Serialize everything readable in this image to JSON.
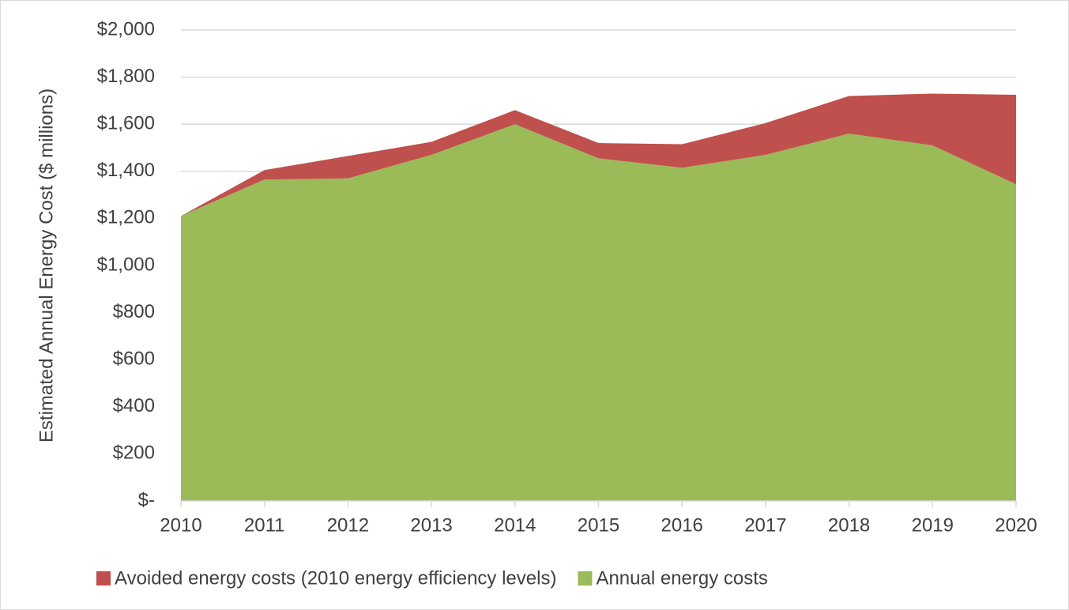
{
  "chart_data": {
    "type": "stacked_area",
    "y_label": "Estimated Annual Energy Cost ($ millions)",
    "x": [
      2010,
      2011,
      2012,
      2013,
      2014,
      2015,
      2016,
      2017,
      2018,
      2019,
      2020
    ],
    "xlim": [
      2010,
      2020
    ],
    "xticks": [
      2010,
      2011,
      2012,
      2013,
      2014,
      2015,
      2016,
      2017,
      2018,
      2019,
      2020
    ],
    "ylim": [
      0,
      2000
    ],
    "yticks": [
      {
        "value": 0,
        "label": "$-"
      },
      {
        "value": 200,
        "label": "$200"
      },
      {
        "value": 400,
        "label": "$400"
      },
      {
        "value": 600,
        "label": "$600"
      },
      {
        "value": 800,
        "label": "$800"
      },
      {
        "value": 1000,
        "label": "$1,000"
      },
      {
        "value": 1200,
        "label": "$1,200"
      },
      {
        "value": 1400,
        "label": "$1,400"
      },
      {
        "value": 1600,
        "label": "$1,600"
      },
      {
        "value": 1800,
        "label": "$1,800"
      },
      {
        "value": 2000,
        "label": "$2,000"
      }
    ],
    "grid": true,
    "legend": "bottom",
    "series": [
      {
        "name": "Avoided energy costs (2010 energy efficiency levels)",
        "color": "#c0504d",
        "values": [
          0,
          40,
          95,
          55,
          60,
          65,
          100,
          135,
          160,
          220,
          380
        ]
      },
      {
        "name": "Annual energy costs",
        "color": "#9bbb59",
        "values": [
          1210,
          1365,
          1370,
          1470,
          1600,
          1455,
          1415,
          1470,
          1560,
          1510,
          1345
        ]
      }
    ]
  }
}
